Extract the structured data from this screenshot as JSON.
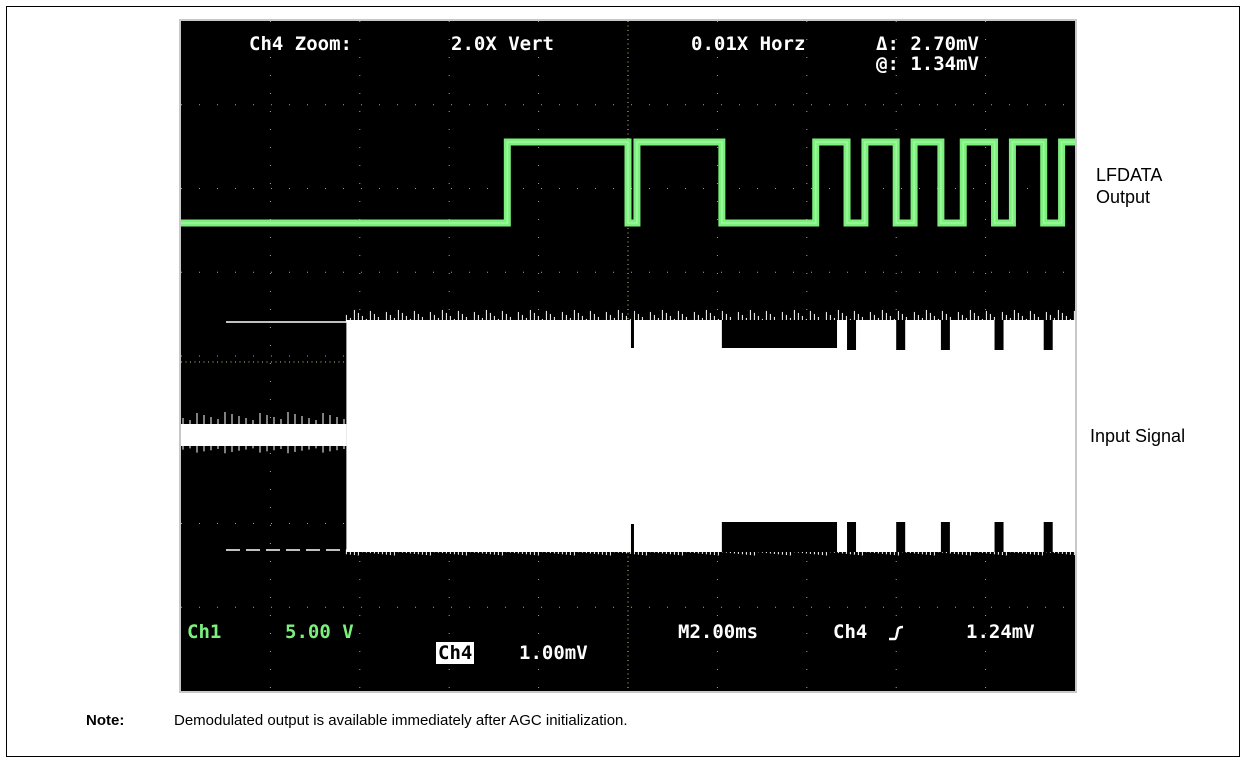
{
  "scope": {
    "zoom_label": "Ch4 Zoom:",
    "vert_zoom": "2.0X Vert",
    "horz_zoom": "0.01X Horz",
    "delta_label": "Δ: 2.70mV",
    "at_label": "@: 1.34mV",
    "ch1_name": "Ch1",
    "ch1_scale": "5.00 V",
    "ch4_name": "Ch4",
    "ch4_scale": "1.00mV",
    "timebase": "M2.00ms",
    "trigger_source": "Ch4",
    "trigger_slope_icon": "rising-edge-icon",
    "trigger_level": "1.24mV",
    "colors": {
      "ch1": "#7cf07c",
      "ch4": "#ffffff",
      "screen": "#000000",
      "graticule": "#e8d08a"
    }
  },
  "labels": {
    "lfdata": [
      "LFDATA",
      "Output"
    ],
    "input_signal": "Input Signal"
  },
  "note": {
    "label": "Note:",
    "text": "Demodulated output is available immediately after AGC initialization."
  },
  "chart_data": {
    "type": "line",
    "title": "",
    "xlabel": "",
    "ylabel": "",
    "grid": true,
    "xlim": [
      0,
      20
    ],
    "x_unit": "ms",
    "series": [
      {
        "name": "LFDATA Output",
        "channel": "Ch1",
        "logic_edges_ms": [
          0,
          7.3,
          10.0,
          10.2,
          12.1,
          14.2,
          14.9,
          15.3,
          16.0,
          16.4,
          17.0,
          17.5,
          18.2,
          18.6,
          19.3,
          19.7,
          20
        ],
        "levels": [
          0,
          1,
          0,
          1,
          0,
          1,
          0,
          1,
          0,
          1,
          0,
          1,
          0,
          1,
          0,
          1
        ]
      },
      {
        "name": "Input Signal",
        "channel": "Ch4",
        "burst_start_ms": 3.7,
        "envelope_drops_ms": [
          12.1,
          14.9,
          16.0,
          17.0,
          18.2,
          19.3
        ]
      }
    ]
  }
}
